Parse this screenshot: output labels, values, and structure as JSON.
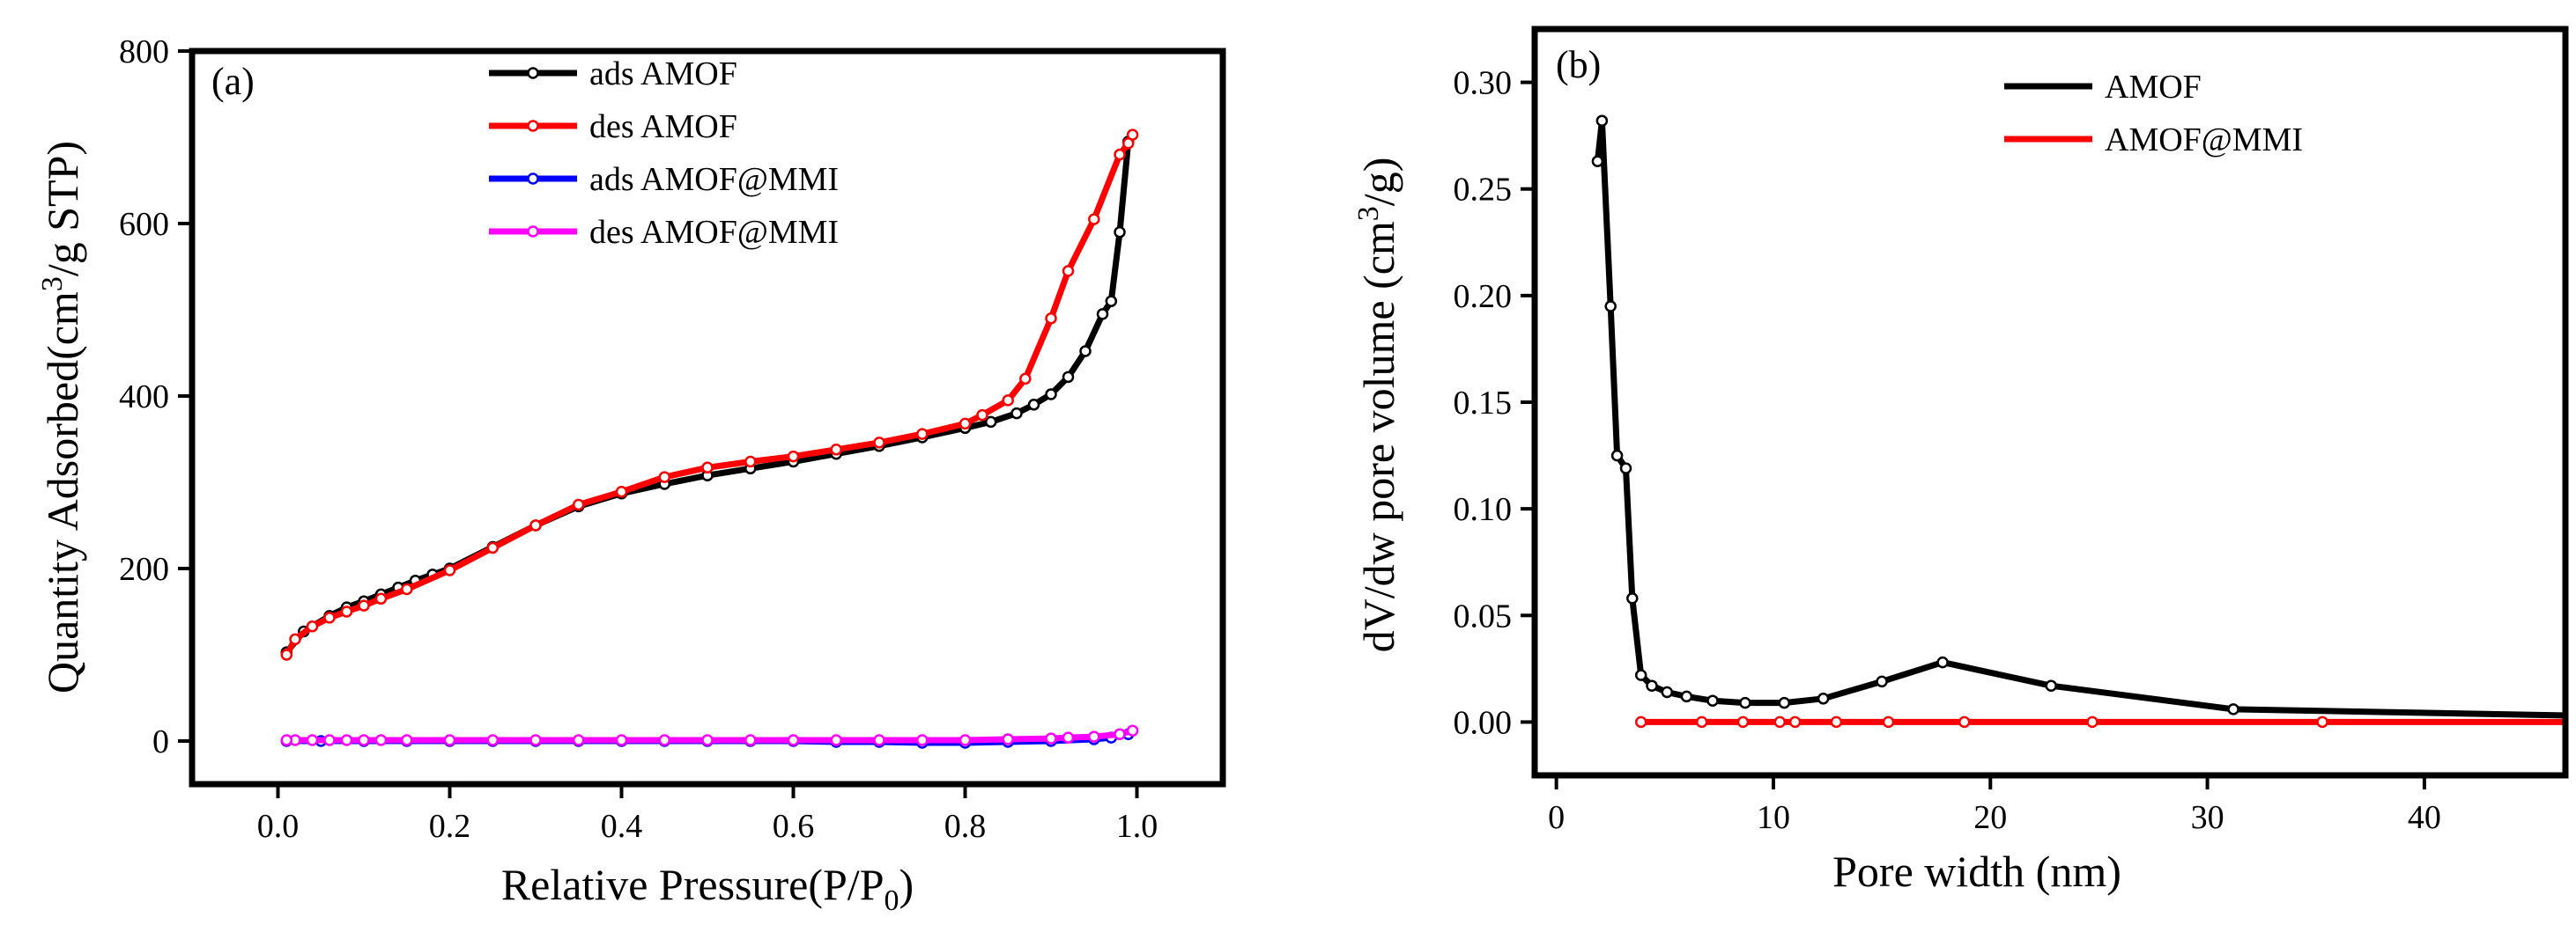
{
  "chart_data": [
    {
      "type": "line",
      "panel_label": "(a)",
      "xlabel_main": "Relative Pressure(P/P",
      "xlabel_sub": "0",
      "xlabel_end": ")",
      "ylabel_main": "Quantity Adsorbed(cm",
      "ylabel_sup": "3",
      "ylabel_end": "/g STP)",
      "xlim": [
        -0.1,
        1.1
      ],
      "ylim": [
        -50,
        800
      ],
      "xticks": [
        0.0,
        0.2,
        0.4,
        0.6,
        0.8,
        1.0
      ],
      "xtick_labels": [
        "0.0",
        "0.2",
        "0.4",
        "0.6",
        "0.8",
        "1.0"
      ],
      "yticks": [
        0,
        200,
        400,
        600,
        800
      ],
      "ytick_labels": [
        "0",
        "200",
        "400",
        "600",
        "800"
      ],
      "legend_position": "top-center",
      "series": [
        {
          "name": "ads AMOF",
          "color": "#000000",
          "x": [
            0.01,
            0.03,
            0.06,
            0.08,
            0.1,
            0.12,
            0.14,
            0.16,
            0.18,
            0.2,
            0.25,
            0.3,
            0.35,
            0.4,
            0.45,
            0.5,
            0.55,
            0.6,
            0.65,
            0.7,
            0.75,
            0.8,
            0.83,
            0.86,
            0.88,
            0.9,
            0.92,
            0.94,
            0.96,
            0.97,
            0.98,
            0.99
          ],
          "y": [
            103,
            127,
            145,
            155,
            162,
            170,
            178,
            186,
            193,
            200,
            225,
            250,
            272,
            287,
            298,
            308,
            316,
            324,
            333,
            342,
            352,
            363,
            370,
            380,
            390,
            402,
            422,
            452,
            495,
            510,
            590,
            695
          ]
        },
        {
          "name": "des AMOF",
          "color": "#ff0000",
          "x": [
            0.995,
            0.99,
            0.98,
            0.95,
            0.92,
            0.9,
            0.87,
            0.85,
            0.82,
            0.8,
            0.75,
            0.7,
            0.65,
            0.6,
            0.55,
            0.5,
            0.45,
            0.4,
            0.35,
            0.3,
            0.25,
            0.2,
            0.15,
            0.12,
            0.1,
            0.08,
            0.06,
            0.04,
            0.02,
            0.01
          ],
          "y": [
            703,
            693,
            680,
            605,
            545,
            490,
            420,
            395,
            378,
            368,
            356,
            346,
            338,
            330,
            324,
            317,
            306,
            289,
            274,
            250,
            224,
            198,
            176,
            165,
            157,
            150,
            143,
            133,
            118,
            100
          ]
        },
        {
          "name": "ads AMOF@MMI",
          "color": "#0000ff",
          "x": [
            0.01,
            0.05,
            0.1,
            0.15,
            0.2,
            0.25,
            0.3,
            0.35,
            0.4,
            0.45,
            0.5,
            0.55,
            0.6,
            0.65,
            0.7,
            0.75,
            0.8,
            0.85,
            0.9,
            0.95,
            0.97,
            0.99
          ],
          "y": [
            0,
            0,
            0,
            0,
            0,
            0,
            0,
            0,
            0,
            0,
            0,
            0,
            0,
            -1,
            -1,
            -2,
            -2,
            -1,
            0,
            2,
            4,
            8
          ]
        },
        {
          "name": "des AMOF@MMI",
          "color": "#ff00ff",
          "x": [
            0.995,
            0.98,
            0.95,
            0.92,
            0.9,
            0.85,
            0.8,
            0.75,
            0.7,
            0.65,
            0.6,
            0.55,
            0.5,
            0.45,
            0.4,
            0.35,
            0.3,
            0.25,
            0.2,
            0.15,
            0.12,
            0.1,
            0.08,
            0.06,
            0.04,
            0.02,
            0.01
          ],
          "y": [
            12,
            8,
            5,
            4,
            3,
            2,
            1,
            1,
            1,
            1,
            1,
            1,
            1,
            1,
            1,
            1,
            1,
            1,
            1,
            1,
            1,
            1,
            1,
            1,
            1,
            1,
            1
          ]
        }
      ]
    },
    {
      "type": "line",
      "panel_label": "(b)",
      "xlabel": "Pore width (nm)",
      "ylabel_main": "dV/dw pore volume (cm",
      "ylabel_sup": "3",
      "ylabel_end": "/g)",
      "xlim": [
        -1,
        46.5
      ],
      "ylim": [
        -0.025,
        0.325
      ],
      "xticks": [
        0,
        10,
        20,
        30,
        40
      ],
      "xtick_labels": [
        "0",
        "10",
        "20",
        "30",
        "40"
      ],
      "yticks": [
        0.0,
        0.05,
        0.1,
        0.15,
        0.2,
        0.25,
        0.3
      ],
      "ytick_labels": [
        "0.00",
        "0.05",
        "0.10",
        "0.15",
        "0.20",
        "0.25",
        "0.30"
      ],
      "legend_position": "top-right",
      "series": [
        {
          "name": "AMOF",
          "color": "#000000",
          "x": [
            1.9,
            2.1,
            2.5,
            2.8,
            3.2,
            3.5,
            3.9,
            4.4,
            5.1,
            6.0,
            7.2,
            8.7,
            10.5,
            12.3,
            15.0,
            17.8,
            22.8,
            31.2,
            47.0
          ],
          "y": [
            0.263,
            0.282,
            0.195,
            0.125,
            0.119,
            0.058,
            0.022,
            0.017,
            0.014,
            0.012,
            0.01,
            0.009,
            0.009,
            0.011,
            0.019,
            0.028,
            0.017,
            0.006,
            0.003
          ],
          "markers": [
            true,
            true,
            true,
            true,
            true,
            true,
            true,
            true,
            true,
            true,
            true,
            true,
            true,
            true,
            true,
            true,
            true,
            true,
            false
          ]
        },
        {
          "name": "AMOF@MMI",
          "color": "#ff0000",
          "x": [
            3.9,
            6.7,
            8.6,
            10.3,
            11.0,
            12.9,
            15.3,
            18.8,
            24.7,
            35.3,
            47.0
          ],
          "y": [
            0.0,
            0.0,
            0.0,
            0.0,
            0.0,
            0.0,
            0.0,
            0.0,
            0.0,
            0.0,
            0.0
          ],
          "markers": [
            true,
            true,
            true,
            true,
            true,
            true,
            true,
            true,
            true,
            true,
            false
          ]
        }
      ]
    }
  ]
}
